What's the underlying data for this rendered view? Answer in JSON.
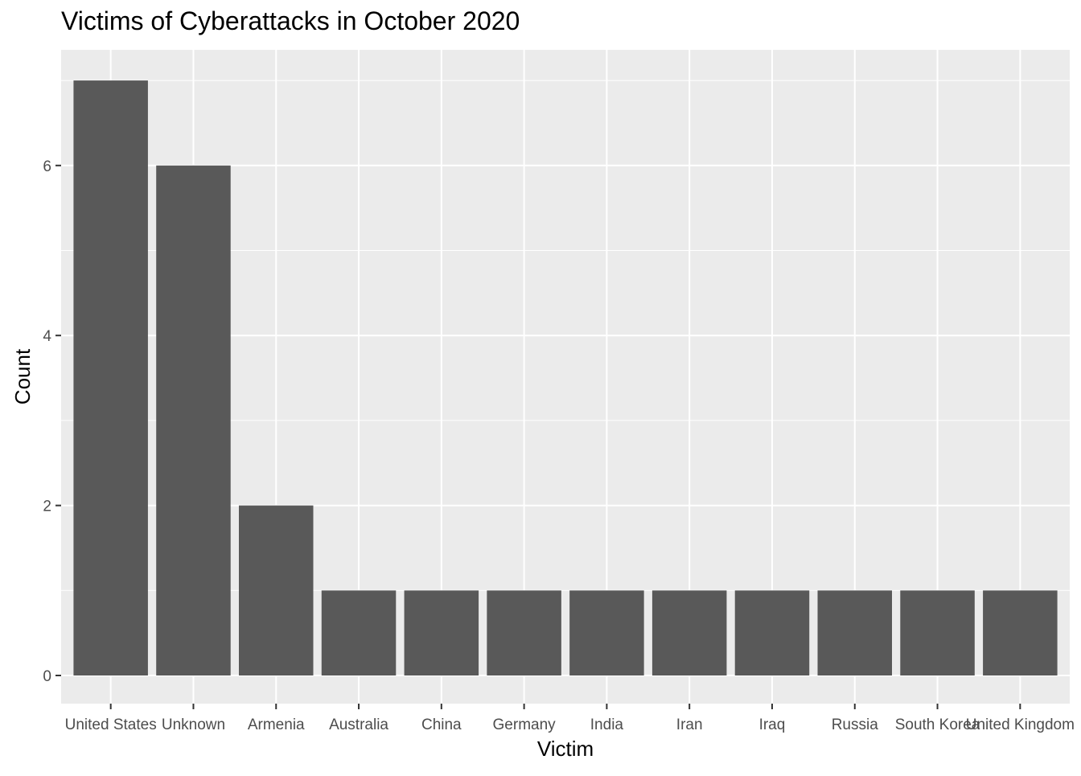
{
  "chart_data": {
    "type": "bar",
    "title": "Victims of Cyberattacks in October 2020",
    "xlabel": "Victim",
    "ylabel": "Count",
    "categories": [
      "United States",
      "Unknown",
      "Armenia",
      "Australia",
      "China",
      "Germany",
      "India",
      "Iran",
      "Iraq",
      "Russia",
      "South Korea",
      "United Kingdom"
    ],
    "values": [
      7,
      6,
      2,
      1,
      1,
      1,
      1,
      1,
      1,
      1,
      1,
      1
    ],
    "ylim": [
      0,
      7
    ],
    "yticks": [
      0,
      2,
      4,
      6
    ],
    "grid": true,
    "colors": {
      "panel": "#EBEBEB",
      "grid_major": "#FFFFFF",
      "bar": "#595959",
      "tick_text": "#4D4D4D",
      "tick_mark": "#333333",
      "axis_title": "#000000"
    }
  }
}
